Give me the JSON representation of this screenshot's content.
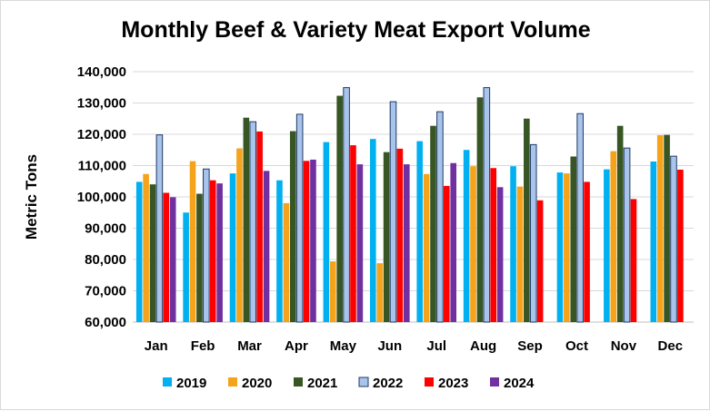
{
  "chart_data": {
    "type": "bar",
    "title": "Monthly Beef & Variety Meat Export Volume",
    "xlabel": "",
    "ylabel": "Metric Tons",
    "ylim": [
      60000,
      140000
    ],
    "yticks": [
      60000,
      70000,
      80000,
      90000,
      100000,
      110000,
      120000,
      130000,
      140000
    ],
    "ytick_labels": [
      "60,000",
      "70,000",
      "80,000",
      "90,000",
      "100,000",
      "110,000",
      "120,000",
      "130,000",
      "140,000"
    ],
    "grid": "horizontal",
    "legend_position": "bottom",
    "categories": [
      "Jan",
      "Feb",
      "Mar",
      "Apr",
      "May",
      "Jun",
      "Jul",
      "Aug",
      "Sep",
      "Oct",
      "Nov",
      "Dec"
    ],
    "series": [
      {
        "name": "2019",
        "color": "#00b0f0",
        "values": [
          104800,
          95000,
          107500,
          105300,
          117500,
          118500,
          117800,
          115000,
          109800,
          107800,
          108800,
          111300
        ]
      },
      {
        "name": "2020",
        "color": "#f5a31a",
        "values": [
          107300,
          111400,
          115500,
          98000,
          79400,
          78800,
          107300,
          109800,
          103300,
          107500,
          114600,
          119700
        ]
      },
      {
        "name": "2021",
        "color": "#375623",
        "values": [
          104000,
          101000,
          125300,
          121000,
          132300,
          114300,
          122700,
          131800,
          125000,
          112900,
          122700,
          119800
        ]
      },
      {
        "name": "2022",
        "color": "#a9c4eb",
        "values": [
          119800,
          108900,
          124000,
          126400,
          134900,
          130400,
          127200,
          134900,
          116700,
          126600,
          115600,
          113000
        ]
      },
      {
        "name": "2023",
        "color": "#ff0000",
        "values": [
          101300,
          105300,
          120900,
          111500,
          116500,
          115400,
          103500,
          109200,
          98900,
          104800,
          99300,
          108700
        ]
      },
      {
        "name": "2024",
        "color": "#7030a0",
        "values": [
          99900,
          104300,
          108300,
          111900,
          110400,
          110400,
          110800,
          103100,
          null,
          null,
          null,
          null
        ]
      }
    ]
  }
}
